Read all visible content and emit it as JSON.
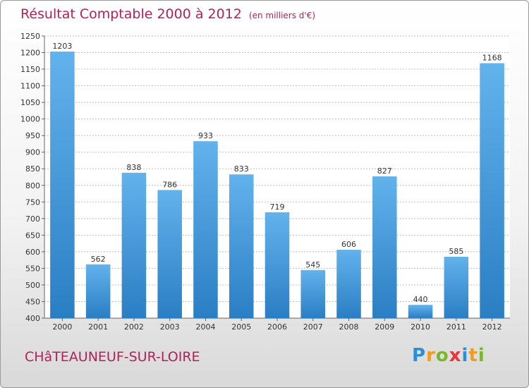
{
  "title": "Résultat Comptable 2000 à 2012",
  "subtitle": "(en milliers d'€)",
  "commune": "CHâTEAUNEUF-SUR-LOIRE",
  "logo": {
    "letters": [
      "P",
      "r",
      "o",
      "x",
      "i",
      "t",
      "i"
    ],
    "colors": [
      "#2a8fd6",
      "#f39c1a",
      "#7ab829",
      "#e8343c",
      "#2a8fd6",
      "#f39c1a",
      "#7ab829"
    ]
  },
  "colors": {
    "bar_light": "#62b2ec",
    "bar_dark": "#2a7ec3",
    "title": "#b0225a"
  },
  "chart_data": {
    "type": "bar",
    "categories": [
      "2000",
      "2001",
      "2002",
      "2003",
      "2004",
      "2005",
      "2006",
      "2007",
      "2008",
      "2009",
      "2010",
      "2011",
      "2012"
    ],
    "values": [
      1203,
      562,
      838,
      786,
      933,
      833,
      719,
      545,
      606,
      827,
      440,
      585,
      1168
    ],
    "ylim": [
      400,
      1250
    ],
    "yticks": [
      400,
      450,
      500,
      550,
      600,
      650,
      700,
      750,
      800,
      850,
      900,
      950,
      1000,
      1050,
      1100,
      1150,
      1200,
      1250
    ],
    "grid": true
  }
}
